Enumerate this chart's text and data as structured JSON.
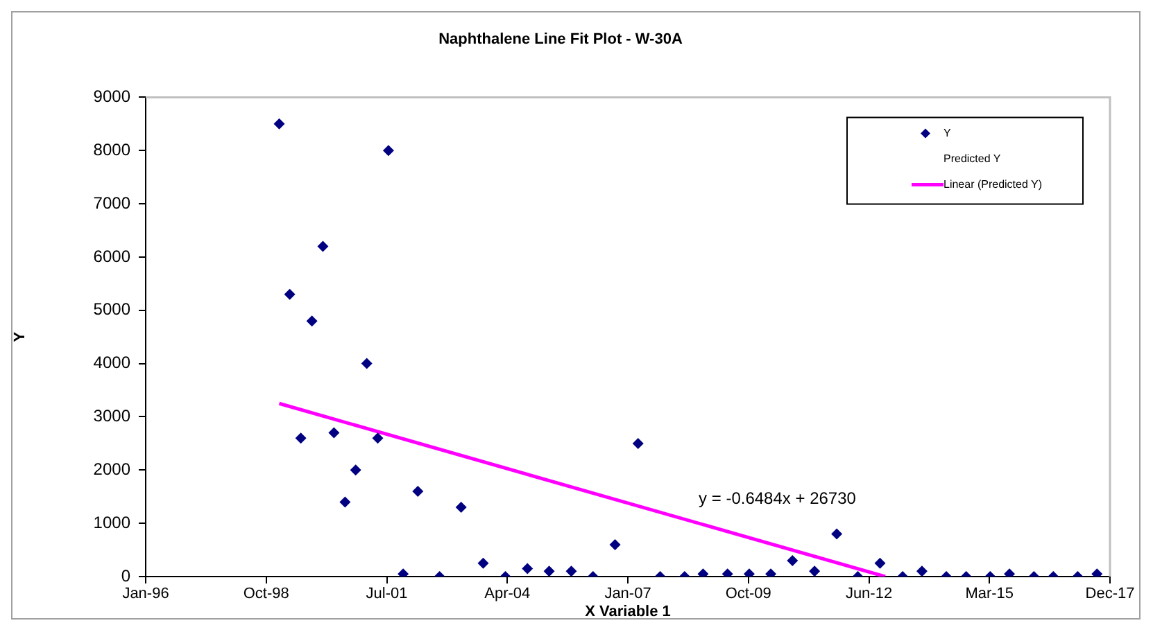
{
  "chart_data": {
    "type": "scatter",
    "title": "Naphthalene Line Fit Plot - W-30A",
    "xlabel": "X Variable 1",
    "ylabel": "Y",
    "xlim": [
      "1996-01-24",
      "2017-12-19"
    ],
    "xticks": [
      {
        "value": "1996-01-24",
        "label": "Jan-96"
      },
      {
        "value": "1998-10-20",
        "label": "Oct-98"
      },
      {
        "value": "2001-07-16",
        "label": "Jul-01"
      },
      {
        "value": "2004-04-11",
        "label": "Apr-04"
      },
      {
        "value": "2007-01-06",
        "label": "Jan-07"
      },
      {
        "value": "2009-10-02",
        "label": "Oct-09"
      },
      {
        "value": "2012-06-28",
        "label": "Jun-12"
      },
      {
        "value": "2015-03-25",
        "label": "Mar-15"
      },
      {
        "value": "2017-12-19",
        "label": "Dec-17"
      }
    ],
    "ylim": [
      0,
      9000
    ],
    "yticks": [
      0,
      1000,
      2000,
      3000,
      4000,
      5000,
      6000,
      7000,
      8000,
      9000
    ],
    "legend": "top right",
    "grid": false,
    "series": [
      {
        "name": "Y",
        "color": "#000080",
        "marker": "diamond",
        "x": [
          "1999-02-05",
          "1999-05-03",
          "1999-08-03",
          "1999-11-03",
          "2000-02-02",
          "2000-05-04",
          "2000-08-04",
          "2000-10-31",
          "2001-01-31",
          "2001-05-02",
          "2001-07-30",
          "2001-11-29",
          "2002-03-31",
          "2002-09-27",
          "2003-03-25",
          "2003-09-24",
          "2004-03-26",
          "2004-09-25",
          "2005-03-24",
          "2005-09-24",
          "2006-03-23",
          "2006-09-22",
          "2007-04-01",
          "2007-10-01",
          "2008-04-21",
          "2008-09-21",
          "2009-04-12",
          "2009-10-09",
          "2010-04-06",
          "2010-10-03",
          "2011-04-04",
          "2011-10-05",
          "2012-03-28",
          "2012-09-28",
          "2013-04-04",
          "2013-09-11",
          "2014-04-01",
          "2014-09-13",
          "2015-03-31",
          "2015-09-07",
          "2016-03-28",
          "2016-09-05",
          "2017-03-26",
          "2017-09-02"
        ],
        "values": [
          8500,
          5300,
          2600,
          4800,
          6200,
          2700,
          1400,
          2000,
          4000,
          2600,
          8000,
          50,
          1600,
          0,
          1300,
          250,
          0,
          150,
          100,
          100,
          0,
          600,
          2500,
          0,
          0,
          50,
          50,
          50,
          50,
          300,
          100,
          800,
          0,
          250,
          0,
          100,
          0,
          0,
          0,
          50,
          0,
          0,
          0,
          50
        ]
      },
      {
        "name": "Predicted Y",
        "marker": "none"
      },
      {
        "name": "Linear (Predicted Y)",
        "type": "line",
        "color": "#ff00ff",
        "marker": "none",
        "line_style": "solid",
        "x": [
          "1999-02-05",
          "2012-11-10"
        ],
        "values": [
          3250,
          0
        ]
      }
    ],
    "annotations": [
      "y = -0.6484x + 26730"
    ]
  }
}
